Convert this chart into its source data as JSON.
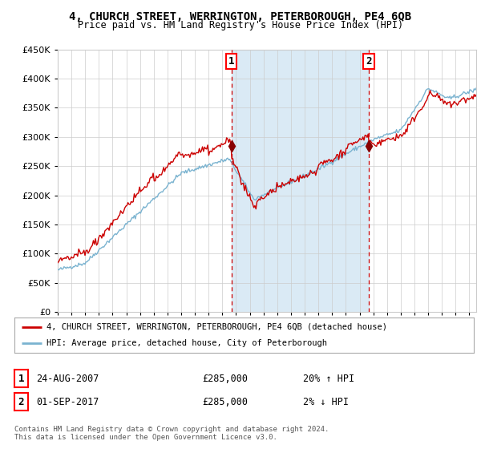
{
  "title": "4, CHURCH STREET, WERRINGTON, PETERBOROUGH, PE4 6QB",
  "subtitle": "Price paid vs. HM Land Registry's House Price Index (HPI)",
  "legend_line1": "4, CHURCH STREET, WERRINGTON, PETERBOROUGH, PE4 6QB (detached house)",
  "legend_line2": "HPI: Average price, detached house, City of Peterborough",
  "annotation1_label": "1",
  "annotation1_date": "24-AUG-2007",
  "annotation1_price": "£285,000",
  "annotation1_change": "20% ↑ HPI",
  "annotation2_label": "2",
  "annotation2_date": "01-SEP-2017",
  "annotation2_price": "£285,000",
  "annotation2_change": "2% ↓ HPI",
  "footer": "Contains HM Land Registry data © Crown copyright and database right 2024.\nThis data is licensed under the Open Government Licence v3.0.",
  "ylim": [
    0,
    450000
  ],
  "yticks": [
    0,
    50000,
    100000,
    150000,
    200000,
    250000,
    300000,
    350000,
    400000,
    450000
  ],
  "red_color": "#cc0000",
  "blue_color": "#7ab3d0",
  "shade_color": "#daeaf5",
  "grid_color": "#cccccc",
  "bg_color": "#ffffff",
  "point1_year": 2007.65,
  "point1_value": 285000,
  "point2_year": 2017.67,
  "point2_value": 285000,
  "xmin": 1995,
  "xmax": 2025.5
}
